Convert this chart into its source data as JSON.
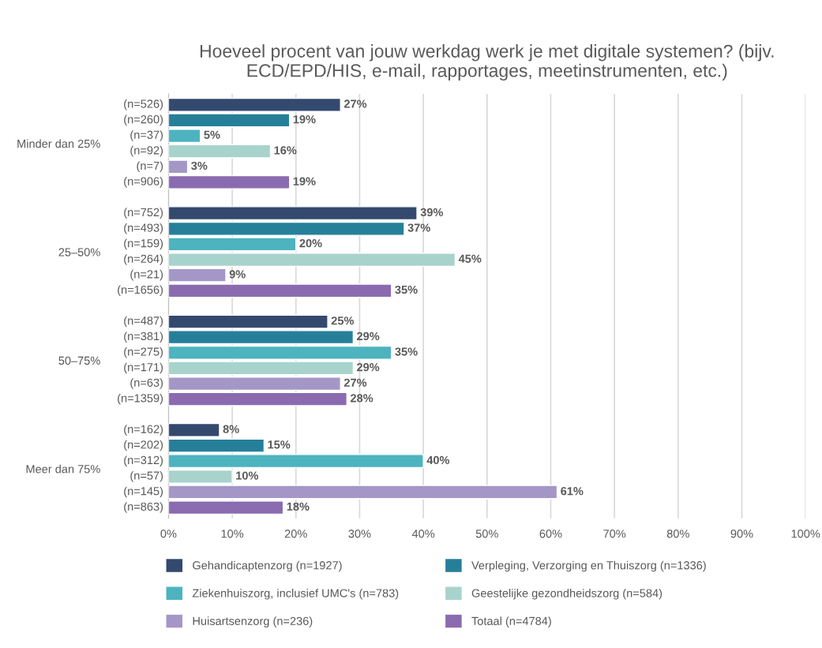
{
  "chart_data": {
    "type": "bar",
    "orientation": "horizontal",
    "title": "Hoeveel procent van jouw werkdag werk je met digitale systemen? (bijv. ECD/EPD/HIS, e-mail, rapportages, meetinstrumenten, etc.)",
    "categories": [
      "Minder dan 25%",
      "25–50%",
      "50–75%",
      "Meer dan 75%"
    ],
    "series": [
      {
        "name": "Gehandicaptenzorg (n=1927)",
        "color": "#34496e",
        "values": [
          27,
          39,
          25,
          8
        ],
        "value_labels": [
          "27%",
          "39%",
          "25%",
          "8%"
        ]
      },
      {
        "name": "Verpleging, Verzorging en Thuiszorg (n=1336)",
        "color": "#267f99",
        "values": [
          19,
          37,
          29,
          15
        ],
        "value_labels": [
          "19%",
          "37%",
          "29%",
          "15%"
        ]
      },
      {
        "name": "Ziekenhuiszorg, inclusief UMC's (n=783)",
        "color": "#4db3bf",
        "values": [
          5,
          20,
          35,
          40
        ],
        "value_labels": [
          "5%",
          "20%",
          "35%",
          "40%"
        ]
      },
      {
        "name": "Geestelijke gezondheidszorg (n=584)",
        "color": "#a8d3cc",
        "values": [
          16,
          45,
          29,
          10
        ],
        "value_labels": [
          "16%",
          "45%",
          "29%",
          "10%"
        ]
      },
      {
        "name": "Huisartsenzorg (n=236)",
        "color": "#a497c7",
        "values": [
          3,
          9,
          27,
          61
        ],
        "value_labels": [
          "3%",
          "9%",
          "27%",
          "61%"
        ]
      },
      {
        "name": "Totaal (n=4784)",
        "color": "#8a6bb0",
        "values": [
          19,
          35,
          28,
          18
        ],
        "value_labels": [
          "19%",
          "35%",
          "28%",
          "18%"
        ]
      }
    ],
    "annotations": [
      "(n=526)",
      "(n=260)",
      "(n=37)",
      "(n=92)",
      "(n=7)",
      "(n=906)",
      "(n=752)",
      "(n=493)",
      "(n=159)",
      "(n=264)",
      "(n=21)",
      "(n=1656)",
      "(n=487)",
      "(n=381)",
      "(n=275)",
      "(n=171)",
      "(n=63)",
      "(n=1359)",
      "(n=162)",
      "(n=202)",
      "(n=312)",
      "(n=57)",
      "(n=145)",
      "(n=863)"
    ],
    "xlim": [
      0,
      100
    ],
    "xticks": [
      {
        "value": 0,
        "label": "0%"
      },
      {
        "value": 10,
        "label": "10%"
      },
      {
        "value": 20,
        "label": "20%"
      },
      {
        "value": 30,
        "label": "30%"
      },
      {
        "value": 40,
        "label": "40%"
      },
      {
        "value": 50,
        "label": "50%"
      },
      {
        "value": 60,
        "label": "60%"
      },
      {
        "value": 70,
        "label": "70%"
      },
      {
        "value": 80,
        "label": "80%"
      },
      {
        "value": 90,
        "label": "90%"
      },
      {
        "value": 100,
        "label": "100%"
      }
    ],
    "grid": "x",
    "legend": "bottom"
  }
}
